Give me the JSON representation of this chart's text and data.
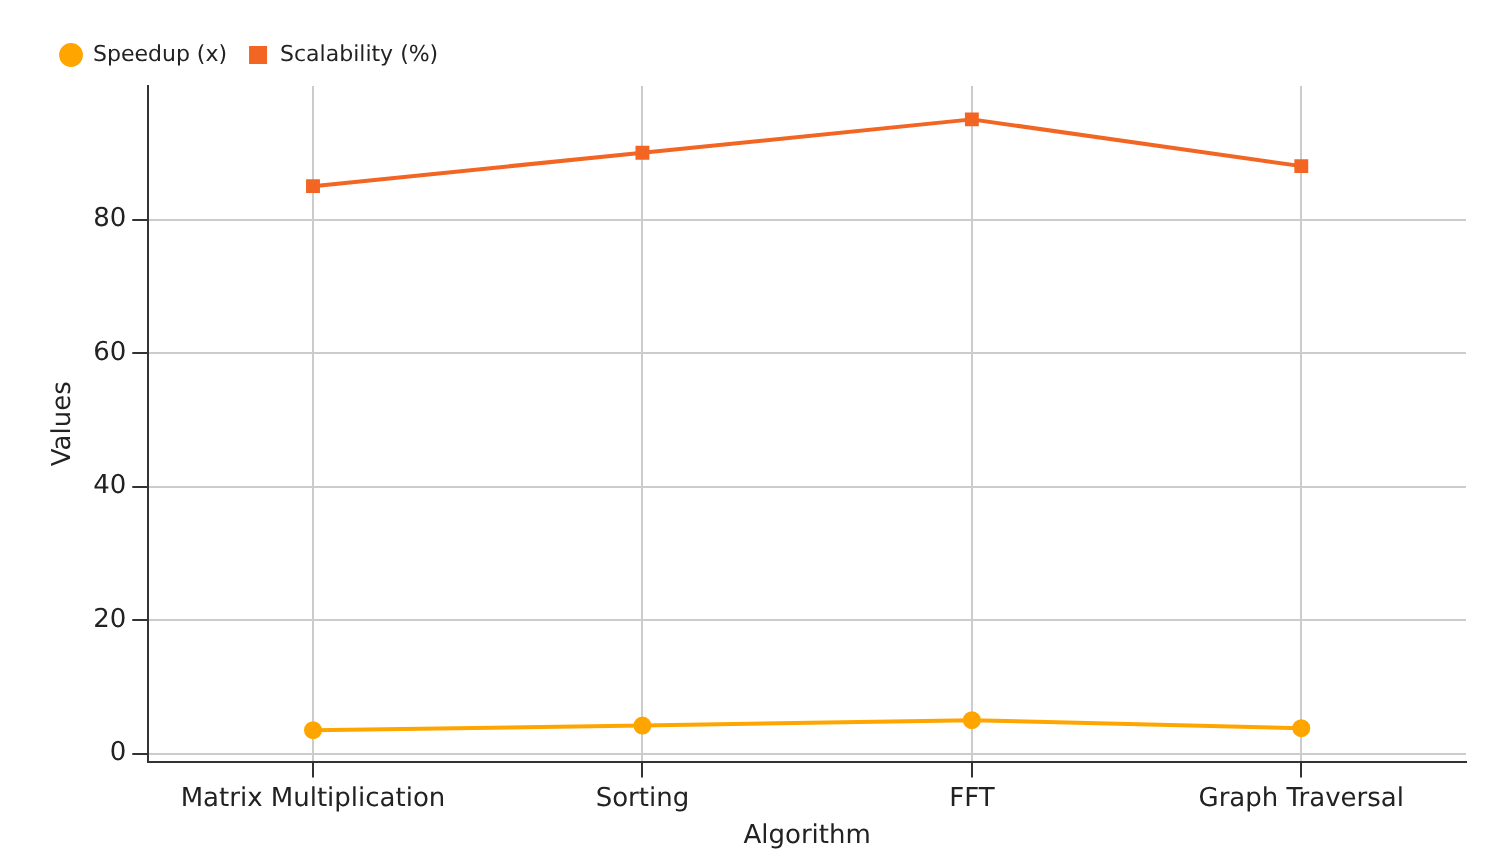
{
  "chart_data": {
    "type": "line",
    "xlabel": "Algorithm",
    "ylabel": "Values",
    "categories": [
      "Matrix Multiplication",
      "Sorting",
      "FFT",
      "Graph Traversal"
    ],
    "series": [
      {
        "name": "Speedup (x)",
        "color": "#ffa500",
        "marker": "circle",
        "values": [
          3.5,
          4.2,
          5,
          3.8
        ]
      },
      {
        "name": "Scalability (%)",
        "color": "#f26522",
        "marker": "square",
        "values": [
          85,
          90,
          95,
          88
        ]
      }
    ],
    "ylim": [
      -1.2,
      100
    ],
    "yticks": [
      0,
      20,
      40,
      60,
      80
    ],
    "grid": true,
    "legend": "top left"
  }
}
